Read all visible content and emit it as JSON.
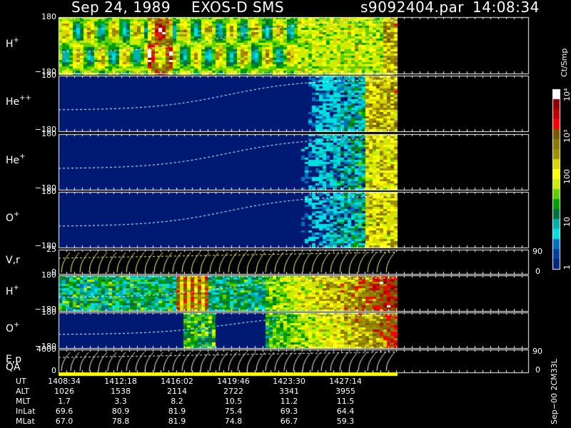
{
  "header": {
    "date": "Sep 24, 1989",
    "instrument": "EXOS-D SMS",
    "file": "s9092404.par",
    "time": "14:08:34"
  },
  "panels": [
    {
      "id": "h_plus_1",
      "label": "H",
      "sup": "+",
      "top": "180",
      "bottom": "−180",
      "kind": "spectro",
      "profile": "h1"
    },
    {
      "id": "he_pp",
      "label": "He",
      "sup": "++",
      "top": "180",
      "bottom": "−180",
      "kind": "spectro",
      "profile": "hepp"
    },
    {
      "id": "he_p",
      "label": "He",
      "sup": "+",
      "top": "180",
      "bottom": "−180",
      "kind": "spectro",
      "profile": "hep"
    },
    {
      "id": "o_plus_1",
      "label": "O",
      "sup": "+",
      "top": "180",
      "bottom": "−180",
      "kind": "spectro",
      "profile": "o1"
    },
    {
      "id": "v_r",
      "label": "V,r",
      "sup": "",
      "top": "25",
      "bottom": "0",
      "right_top": "90",
      "right_bottom": "0",
      "kind": "curves"
    },
    {
      "id": "h_plus_2",
      "label": "H",
      "sup": "+",
      "top": "180",
      "bottom": "−180",
      "kind": "spectro",
      "profile": "h2"
    },
    {
      "id": "o_plus_2",
      "label": "O",
      "sup": "+",
      "top": "180",
      "bottom": "−180",
      "kind": "spectro",
      "profile": "o2"
    },
    {
      "id": "e_p",
      "label": "E,p",
      "sup": "",
      "top": "4000",
      "bottom": "0",
      "right_top": "90",
      "right_bottom": "0",
      "kind": "curves"
    }
  ],
  "qa_label": "QA",
  "colorbar": {
    "unit": "Ct/Smp",
    "labels": [
      "10⁴",
      "10³",
      "100",
      "10",
      "1"
    ],
    "colors": [
      "#ffffff",
      "#8b0000",
      "#c00000",
      "#ff0000",
      "#7a5a00",
      "#8a7a00",
      "#a09000",
      "#d8d800",
      "#ffff00",
      "#c8f000",
      "#60d000",
      "#00a000",
      "#007040",
      "#00b0b0",
      "#00e0e0",
      "#0070c0",
      "#0040a0",
      "#002880"
    ]
  },
  "footer_note": "Sep−00 2CM33L",
  "ephemeris": {
    "rows": [
      {
        "label": "UT",
        "values": [
          "1408:34",
          "1412:18",
          "1416:02",
          "1419:46",
          "1423:30",
          "1427:14"
        ]
      },
      {
        "label": "ALT",
        "values": [
          "1026",
          "1538",
          "2114",
          "2722",
          "3341",
          "3955"
        ]
      },
      {
        "label": "MLT",
        "values": [
          "1.7",
          "3.3",
          "8.2",
          "10.5",
          "11.2",
          "11.5"
        ]
      },
      {
        "label": "InLat",
        "values": [
          "69.6",
          "80.9",
          "81.9",
          "75.4",
          "69.3",
          "64.4"
        ]
      },
      {
        "label": "MLat",
        "values": [
          "67.0",
          "78.8",
          "81.9",
          "74.8",
          "66.7",
          "59.3"
        ]
      }
    ]
  }
}
